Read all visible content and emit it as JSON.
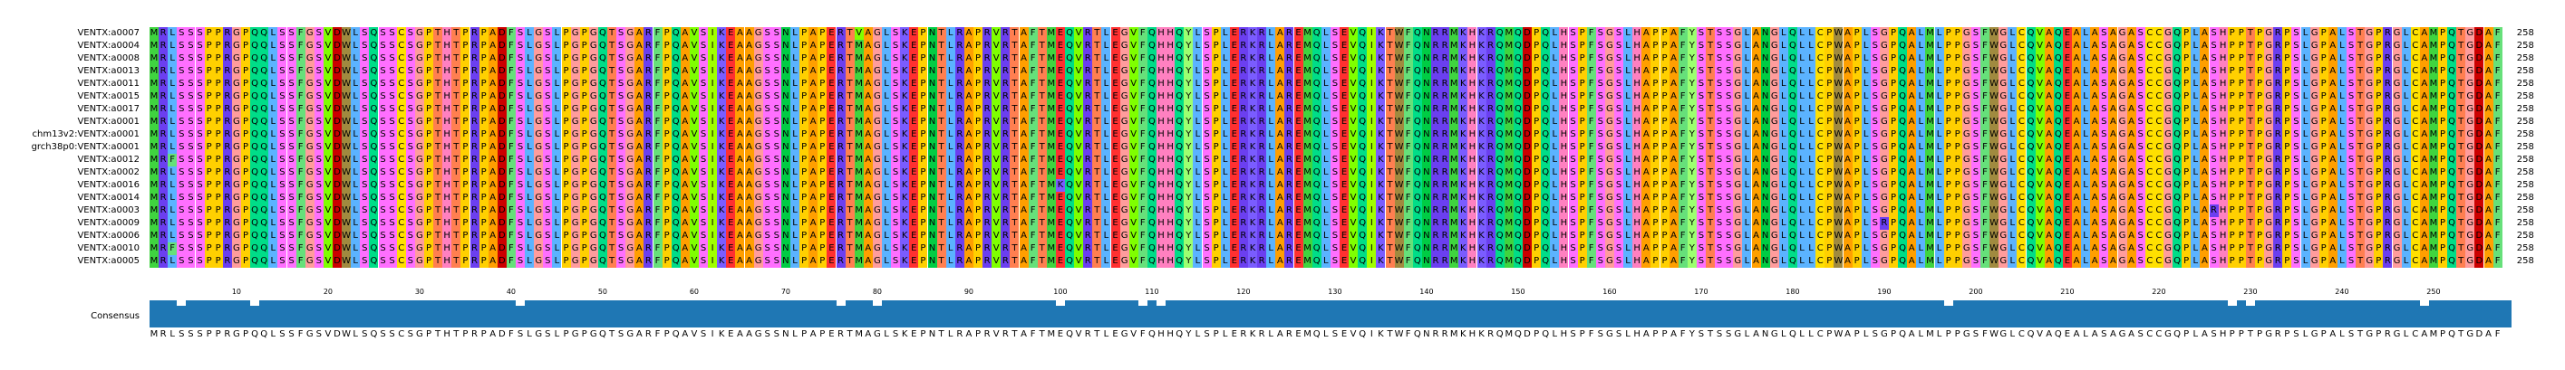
{
  "alignment": {
    "length": 258,
    "length_label": "258",
    "sequences": [
      {
        "name": "VENTX:a0007",
        "seq": "MRLSSSPPRGPQQLSSFGSVDWLSQSSCSGPTHTPRPADFSLGSLPGPGQTSGARFPQAVSIKEAAGSSNLPAPERTVAGLSKEPNTLRAPRVRTAFTMEQVRTLEGVFQHHQYLSPLERKRLAREMQLSEVQIKTWFQNRRMKHKRQMQDPQLHSPFSGSLHAPPAFYSTSSGLANGLQLLCPWAPLSGPQALMLPPGSFWGLCQVAQEALASAGASCCGQPLASHPPTPGRPSLGPALSTGPRGLCAMPQTGDAF",
        "len": "258"
      },
      {
        "name": "VENTX:a0004",
        "seq": "MRLSSSPPRGPQQLSSFGSVDWLSQSSCSGPTHTPRPADFSLGSLPGPGQTSGARFPQAVSIKEAAGSSNLPAPERTMAGLSKEPNTLRAPRVRTAFTMEQVRTLEGVFQHHQYLSPLERKRLAREMQLSEVQIKTWFQNRRMKHKRQMQDPQLHSPFSGSLHAPPAFYSTSSGLANGLQLLCPWAPLSGPQALMLPPGSFWGLCQVAQEALASAGASCCGQPLASHPPTPGRPSLGPALSTGPRGLCAMPQTGDAF",
        "len": "258"
      },
      {
        "name": "VENTX:a0008",
        "seq": "MRLSSSPPRGPQQLSSFGSVDWLSQSSCSGPTHTPRPADFSLGSLPGPGQTSGARFPQAVSIKEAAGSSNLPAPERTMAGLSKEPNTLRAPRVRTAFTMEQVRTLEGVFQHHQYLSPLERKRLAREMQLSEVQIKTWFQNRRMKHKRQMQDPQLHSPFSGSLHAPPAFYSTSSGLANGLQLLCPWAPLSGPQALMLPPGSFWGLCQVAQEALASAGASCCGQPLASHPPTPGRPSLGPALSTGPRGLCAMPQTGDAF",
        "len": "258"
      },
      {
        "name": "VENTX:a0013",
        "seq": "MRLSSSPPRGPQQLSSFGSVDWLSQSSCSGPTHTPRPADFSLGSLPGPGQTSGARFPQAVSIKEAAGSSNLPAPERTMAGLSKEPNTLRAPRVRTAFTMEQVRTLEGVFQHHQYLSPLERKRLAREMQLSEVQIKTWFQNRRMKHKRQMQDPQLHSPFSGSLHAPPAFYSTSSGLANGLQLLCPWAPLSGPQALMLPPGSFWGLCQVAQEALASAGASCCGQPLASHPPTPGRPSLGPALSTGPRGLCAMPQTGDAF",
        "len": "258"
      },
      {
        "name": "VENTX:a0011",
        "seq": "MRLSSSPPRGPQQLSSFGSVDWLSQSSCSGPTHTPRPADFSLGSLPGPGQTSGARFPQAVSIKEAAGSSNLPAPERTMAGLSKEPNTLRAPRVRTAFTMEQVRTLEGVFQHHQYLSPLERKRLAREMQLSEVQIKTWFQNRRMKHKRQMQDPQLHSPFSGSLHAPPAFYSTSSGLANGLQLLCPWAPLSGPQALMLPPGSFWGLCQVAQEALASAGASCCGQPLASHPPTPGRPSLGPALSTGPRGLCAMPQTGDAF",
        "len": "258"
      },
      {
        "name": "VENTX:a0015",
        "seq": "MRLSSSPPRGPQQLSSFGSVDWLSQSSCSGPTHTPRPADFSLGSLPGPGQTSGARFPQAVSIKEAAGSSNLPAPERTMAGLSKEPNTLRAPRVRTAFTMEQVRTLEGVFQHHQYLSPLERKRLAREMQLSEVQIKTWFQNRRMKHKRQMQDPQLHSPFSGSLHAPPAFYSTSSGLANGLQLLCPWAPLSGPQALMLPPGSFWGLCQVAQEALASAGASCCGQPLASHPPTPGRPSLGPALSTGPRGLCAMPQTGDAF",
        "len": "258"
      },
      {
        "name": "VENTX:a0017",
        "seq": "MRLSSSPPRGPQQLSSFGSVDWLSQSSCSGPTHTPRPADFSLGSLPGPGQTSGARFPQAVSIKEAAGSSNLPAPERTMAGLSKEPNTLRAPRVRTAFTMEQVRTLEGVFQHHQYLSPLERKRLAREMQLSEVQIKTWFQNRRMKHKRQMQDPQLHSPFSGSLHAPPAFYSTSSGLANGLQLLCPWAPLSGPQALMLPPGSFWGLCQVAQEALASAGASCCGQPLASHPPTPGRPSLGPALSTGPRGLCAMPQTGDAF",
        "len": "258"
      },
      {
        "name": "VENTX:a0001",
        "seq": "MRLSSSPPRGPQQLSSFGSVDWLSQSSCSGPTHTPRPADFSLGSLPGPGQTSGARFPQAVSIKEAAGSSNLPAPERTMAGLSKEPNTLRAPRVRTAFTMEQVRTLEGVFQHHQYLSPLERKRLAREMQLSEVQIKTWFQNRRMKHKRQMQDPQLHSPFSGSLHAPPAFYSTSSGLANGLQLLCPWAPLSGPQALMLPPGSFWGLCQVAQEALASAGASCCGQPLASHPPTPGRPSLGPALSTGPRGLCAMPQTGDAF",
        "len": "258"
      },
      {
        "name": "chm13v2:VENTX:a0001",
        "seq": "MRLSSSPPRGPQQLSSFGSVDWLSQSSCSGPTHTPRPADFSLGSLPGPGQTSGARFPQAVSIKEAAGSSNLPAPERTMAGLSKEPNTLRAPRVRTAFTMEQVRTLEGVFQHHQYLSPLERKRLAREMQLSEVQIKTWFQNRRMKHKRQMQDPQLHSPFSGSLHAPPAFYSTSSGLANGLQLLCPWAPLSGPQALMLPPGSFWGLCQVAQEALASAGASCCGQPLASHPPTPGRPSLGPALSTGPRGLCAMPQTGDAF",
        "len": "258"
      },
      {
        "name": "grch38p0:VENTX:a0001",
        "seq": "MRLSSSPPRGPQQLSSFGSVDWLSQSSCSGPTHTPRPADFSLGSLPGPGQTSGARFPQAVSIKEAAGSSNLPAPERTMAGLSKEPNTLRAPRVRTAFTMEQVRTLEGVFQHHQYLSPLERKRLAREMQLSEVQIKTWFQNRRMKHKRQMQDPQLHSPFSGSLHAPPAFYSTSSGLANGLQLLCPWAPLSGPQALMLPPGSFWGLCQVAQEALASAGASCCGQPLASHPPTPGRPSLGPALSTGPRGLCAMPQTGDAF",
        "len": "258"
      },
      {
        "name": "VENTX:a0012",
        "seq": "MRFSSSPPRGPQQLSSFGSVDWLSQSSCSGPTHTPRPADFSLGSLPGPGQTSGARFPQAVSIKEAAGSSNLPAPERTMAGLSKEPNTLRAPRVRTAFTMEQVRTLEGVFQHHQYLSPLERKRLAREMQLSEVQIKTWFQNRRMKHKRQMQDPQLHSPFSGSLHAPPAFYSTSSGLANGLQLLCPWAPLSGPQALMLPPGSFWGLCQVAQEALASAGASCCGQPLASHPPTPGRPSLGPALSTGPRGLCAMPQTGDAF",
        "len": "258"
      },
      {
        "name": "VENTX:a0002",
        "seq": "MRLSSSPPRGPQQLSSFGSVDWLSQSSCSGPTHTPRPADFSLGSLPGPGQTSGARFPQAVSIKEAAGSSNLPAPERTMAGLSKEPNTLRAPRVRTAFTMEQVRTLEGVFQHHQYLSPLERKRLAREMQLSEVQIKTWFQNRRMKHKRQMQDPQLHSPFSGSLHAPPAFYSTSSGLANGLQLLCPWAPLSGPQALMLPPGSFWGLCQVAQEALASAGASCCGQPLASHPPTPGRPSLGPALSTGPRGLCAMPQTGDAF",
        "len": "258"
      },
      {
        "name": "VENTX:a0016",
        "seq": "MRLSSSPPRGPQQLSSFGSVDWLSQSSCSGPTHTPRPADFSLGSLPGPGQTSGARFPQAVSIKEAAGSSNLPAPERTMAGLSKEPNTLRAPRVRTAFTMKQVRTLEGVFQHHQYLSPLERKRLAREMQLSEVQIKTWFQNRRMKHKRQMQDPQLHSPFSGSLHAPPAFYSTSSGLANGLQLLCPWAPLSGPQALMLPPGSFWGLCQVAQEALASAGASCCGQPLASHPPTPGRPSLGPALSTGPRGLCAMPQTGDAF",
        "len": "258"
      },
      {
        "name": "VENTX:a0014",
        "seq": "MRLSSSPPRGPQQLSSFGSVDWLSQSSCSGPTHTPRPADFSLGSLPGPGQTSGARFPQAVSIKEAAGSSNLPAPERTMAGLSKEPNTLRAPRVRTAFTMEQVRTLEGVFQHHQYLSPLERKRLAREMQLSEVQIKTWFQNRRMKHKRQMQDPQLHSPFSGSLHAPPAFYSTSSGLANGLQLLCPWAPLSGPQALMLPPGSFWGLCQVAQEALASAGASCCGQPLASHPPTPGRPSLGPALSTGPRGLCAMPQTGDAF",
        "len": "258"
      },
      {
        "name": "VENTX:a0003",
        "seq": "MRLSSSPPRGPQQLSSFGSVDWLSQSSCSGPTHTPRPADFSLGSLPGPGQTSGARFPQAVSIKEAAGSSNLPAPERTMAGLSKEPNTLRAPRVRTAFTMEQVRTLEGVFQHHQYLSPLERKRLAREMQLSEVQIKTWFQNRRMKHKRQMQDPQLHSPFSGSLHAPPAFYSTSSGLANGLQLLCPWAPLSGPQALMLPPGSFWGLCQVAQEALASAGASCCGQPLARHPPTPGRPSLGPALSTGPRGLCAMPQTGDAF",
        "len": "258"
      },
      {
        "name": "VENTX:a0009",
        "seq": "MRLSSSPPRGPQQLSSFGSVDWLSQSSCSGPTHTPRPADFSLGSLPGPGQTSGARFPQAVSIKEAAGSSNLPAPERTMAGLSKEPNTLRAPRVRTAFTMEQVRTLEGVFQHHQYLSPLERKRLAREMQLSEVQIKTWFQNRRMKHKRQMQDPQLHSPFSGSLHAPPAFYSTSSGLANGLQLLCPWAPLSRPQALMLPPGSFWGLCQVAQEALASAGASCCGQPLASHPPTPGRPSLGPALSTGPRGLCAMPQTGDAF",
        "len": "258"
      },
      {
        "name": "VENTX:a0006",
        "seq": "MRLSSSPPRGPQQLSSFGSVDWLSQSSCSGPTHTPRPADFSLGSLPGPGQTSGARFPQAVSIKEAAGSSNLPAPERTMAGLSKEPNTLRAPRVRTAFTMEQVRTLEGVFQHHQYLSPLERKRLAREMQLSEVQIKTWFQNRRMKHKRQMQDPQLHSPFSGSLHAPPAFYSTSSGLANGLQLLCPWAPLSGPQALMLPPGSFWGLCQVAQEALASAGASCCGQPLASHPPTPGRPSLGPALSTGPRGLCAMPQTGDAF",
        "len": "258"
      },
      {
        "name": "VENTX:a0010",
        "seq": "MRFSSSPPRGPQQLSSFGSVDWLSQSSCSGPTHTPRPADFSLGSLPGPGQTSGARFPQAVSIKEAAGSSNLPAPERTMAGLSKEPNTLRAPRVRTAFTMEQVRTLEGVFQHHQYLSPLERKRLAREMQLSEVQIKTWFQNRRMKHKRQMQDPQLHSPFSGSLHAPPAFYSTSSGLANGLQLLCPWAPLSGPQALMLPPGSFWGLCQVAQEALASAGASCCGQPLASHPPTPGRPSLGPALSTGPRGLCAMPQTGDAF",
        "len": "258"
      },
      {
        "name": "VENTX:a0005",
        "seq": "MRLSSSPPRGPQQLSSFGSVDWLSQSSCSGPTHTPRPADFSLGSLPGPGQTSGARFPQAVSIKEAAGSSNLPAPERTMAGLSKEPNTLRAPRVRTAFTMEQVRTLEGVFQHHQYLSPLERKRLAREMQLSEVQIKTWFQNRRMKHKRQMQDPQLHSPFSGSLHAPPAFYSTSSGLANGLQLLCPWAPLSGPQALMLPPGSFWGLCQVAQEALASAGASCCGQPLASHPPTPGRPSLGPALSTGPRGLCAMPQTGDAF",
        "len": "258"
      }
    ],
    "tick_labels": [
      "10",
      "20",
      "30",
      "40",
      "50",
      "60",
      "70",
      "80",
      "90",
      "100",
      "110",
      "120",
      "130",
      "140",
      "150",
      "160",
      "170",
      "180",
      "190",
      "200",
      "210",
      "220",
      "230",
      "240",
      "250"
    ],
    "consensus_label": "Consensus",
    "consensus_seq": "MRLSSSPPRGPQQLSSFGSVDWLSQSSCSGPTHTPRPADFSLGSLPGPGQTSGARFPQAVSIKEAAGSSNLPAPERTMAGLSKEPNTLRAPRVRTAFTMEQVRTLEGVFQHHQYLSPLERKRLAREMQLSEVQIKTWFQNRRMKHKRQMQDPQLHSPFSGSLHAPPAFYSTSSGLANGLQLLCPWAPLSGPQALMLPPGSFWGLCQVAQEALASAGASCCGQPLASHPPTPGRPSLGPALSTGPRGLCAMPQTGDAF",
    "conservation_dips": [
      3,
      75,
      79,
      108,
      110,
      196,
      227,
      229,
      248,
      99,
      40,
      11
    ],
    "colors": {
      "A": "#ff9f00",
      "R": "#6b3ff0",
      "N": "#00cc44",
      "D": "#cc0000",
      "C": "#ffe000",
      "Q": "#00dd88",
      "E": "#ff3030",
      "G": "#ff9c9c",
      "H": "#ff80c0",
      "I": "#a0ff00",
      "L": "#5bb3ff",
      "K": "#7a5cff",
      "M": "#3fd43f",
      "F": "#66e07a",
      "P": "#ffd000",
      "S": "#ff6fff",
      "T": "#ff7f50",
      "W": "#a08a3f",
      "Y": "#9dff70",
      "V": "#7fff00",
      "bar": "#1f77b4"
    }
  }
}
